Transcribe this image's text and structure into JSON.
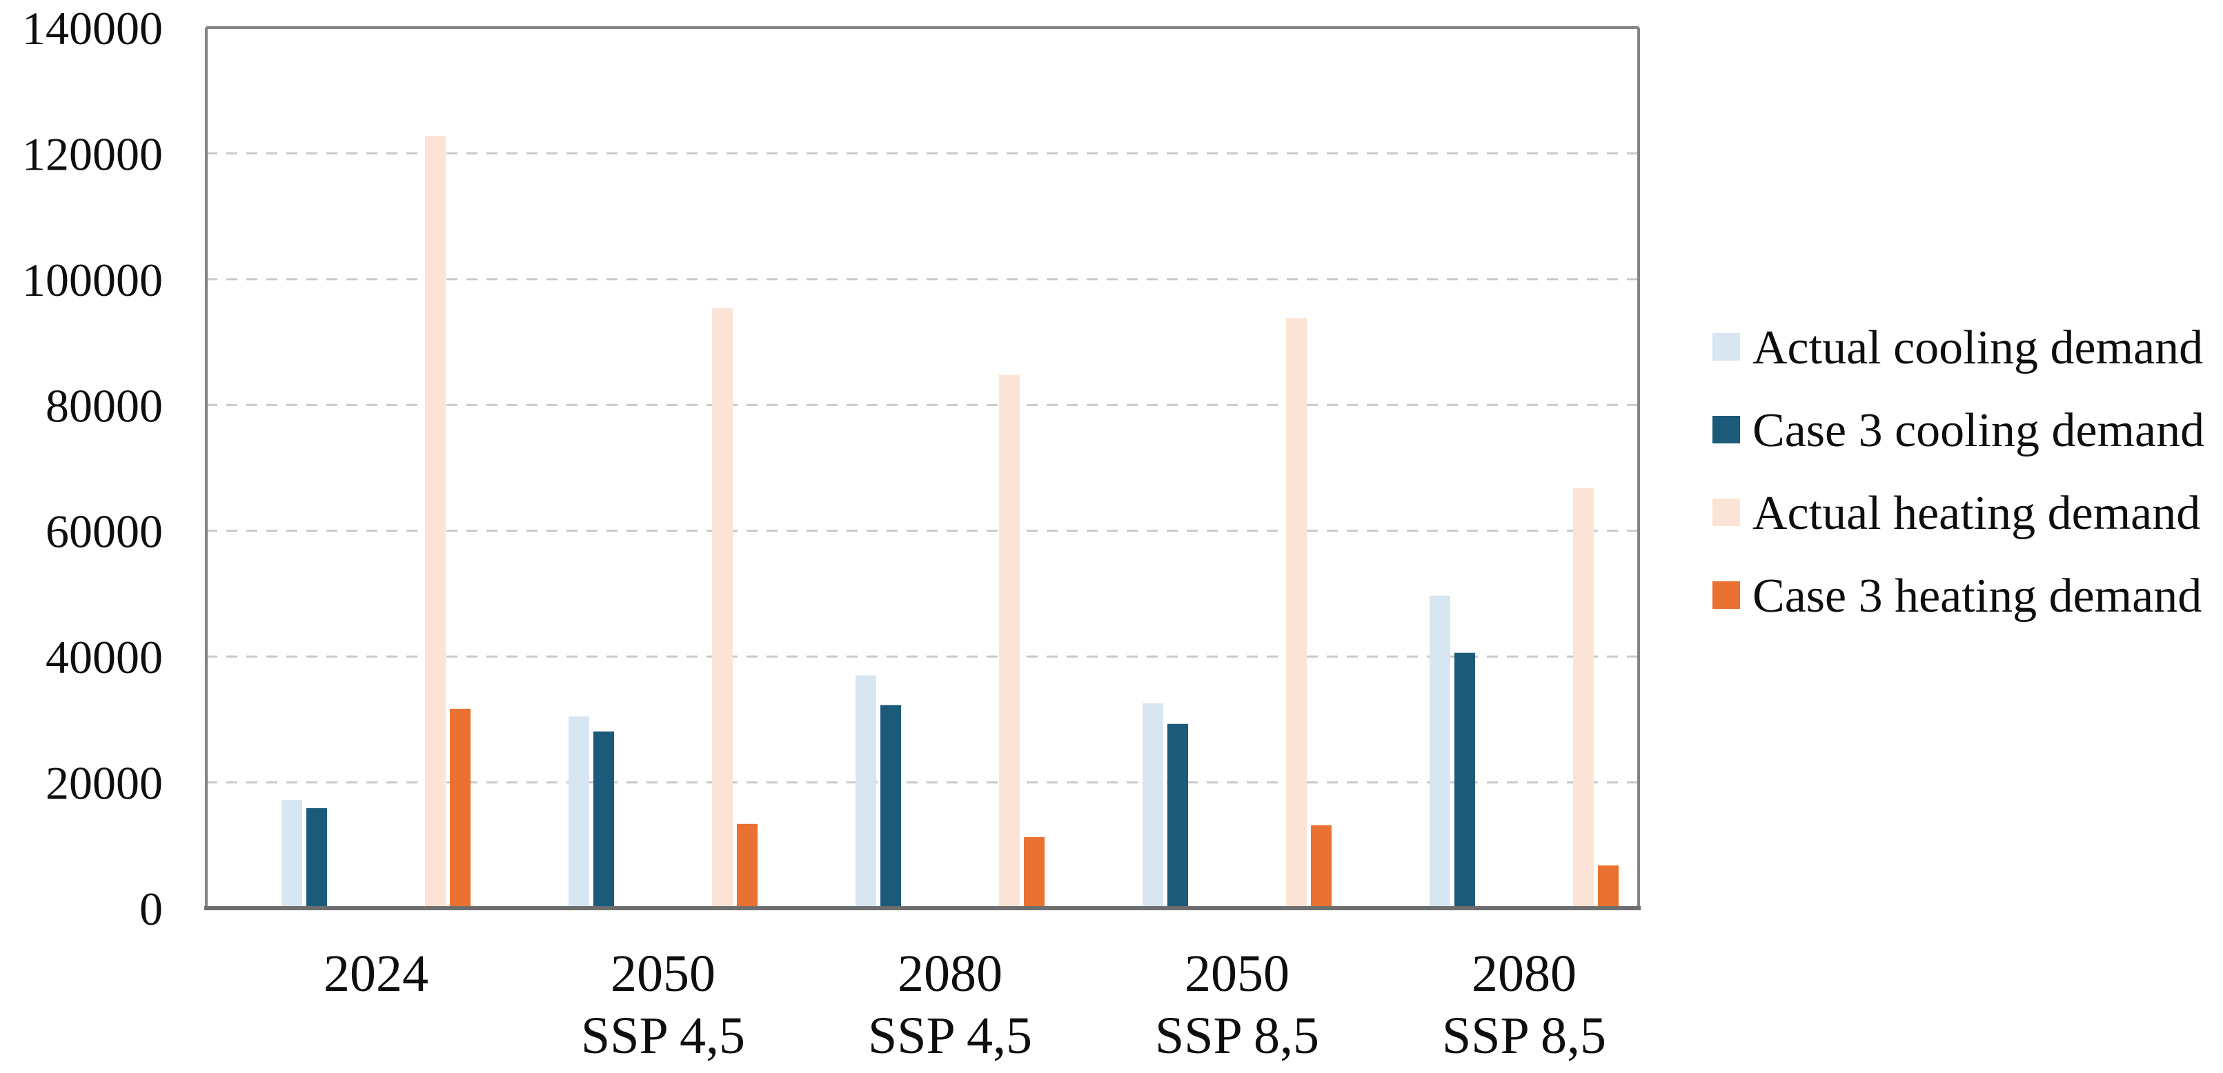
{
  "chart_data": {
    "type": "bar",
    "title": "",
    "xlabel": "",
    "ylabel": "",
    "categories": [
      {
        "line1": "2024",
        "line2": ""
      },
      {
        "line1": "2050",
        "line2": "SSP 4,5"
      },
      {
        "line1": "2080",
        "line2": "SSP 4,5"
      },
      {
        "line1": "2050",
        "line2": "SSP 8,5"
      },
      {
        "line1": "2080",
        "line2": "SSP 8,5"
      }
    ],
    "series": [
      {
        "name": "Actual cooling demand",
        "color": "#D8E6F2",
        "values": [
          17200,
          30500,
          37000,
          32600,
          49700
        ]
      },
      {
        "name": "Case 3 cooling demand",
        "color": "#1C5A7A",
        "values": [
          15900,
          28100,
          32300,
          29300,
          40600
        ]
      },
      {
        "name": "Actual heating demand",
        "color": "#FBE4D5",
        "values": [
          122800,
          95400,
          84800,
          93800,
          66800
        ]
      },
      {
        "name": "Case 3 heating demand",
        "color": "#E97132",
        "values": [
          31700,
          13400,
          11300,
          13200,
          6800
        ]
      }
    ],
    "ylim": [
      0,
      140000
    ],
    "ytick_step": 20000,
    "ytick_labels": [
      "0",
      "20000",
      "40000",
      "60000",
      "80000",
      "100000",
      "120000",
      "140000"
    ],
    "grid": "horizontal-dashed",
    "legend_position": "right",
    "colors": {
      "gridline": "#C9C9C9",
      "frame": "#848484",
      "axis_line": "#6E6E6E",
      "text": "#0e0e0e",
      "background": "#ffffff"
    }
  }
}
